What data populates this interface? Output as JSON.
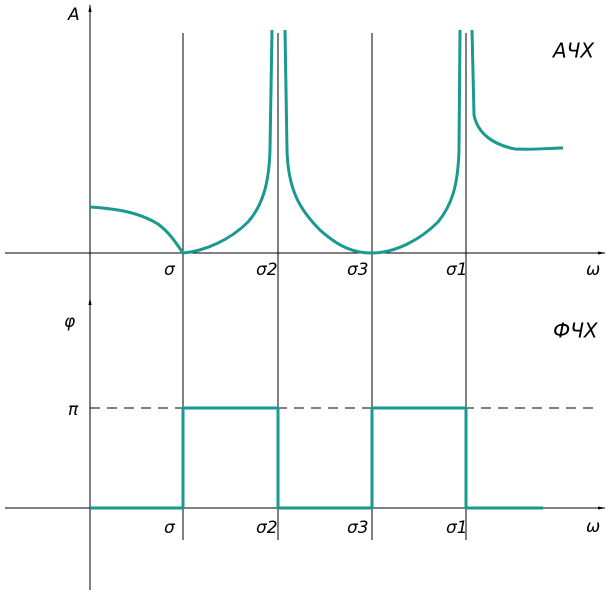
{
  "upper": {
    "y_label": "A",
    "title": "АЧХ",
    "x_label": "ω",
    "marks": [
      "σ",
      "σ2",
      "σ3",
      "σ1"
    ]
  },
  "lower": {
    "y_label": "φ",
    "title": "ФЧХ",
    "x_label": "ω",
    "level_label": "π",
    "marks": [
      "σ",
      "σ2",
      "σ3",
      "σ1"
    ]
  }
}
